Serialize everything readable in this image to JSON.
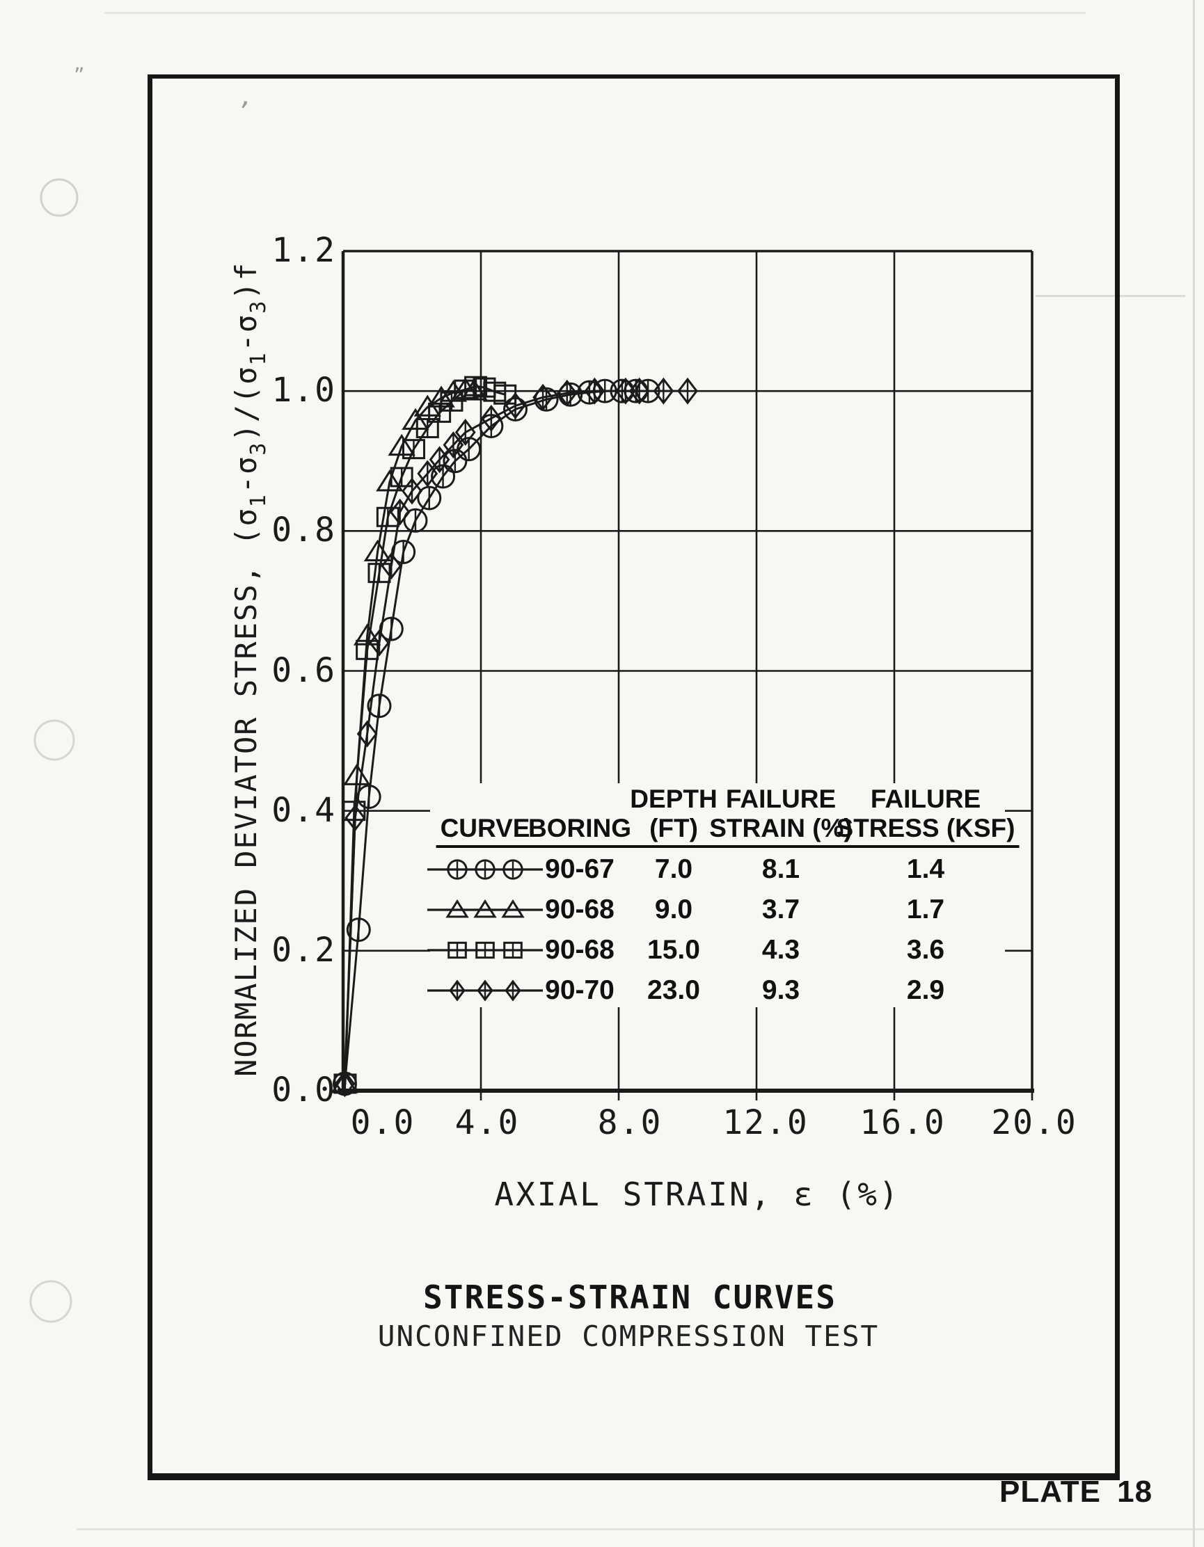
{
  "page": {
    "title": "STRESS-STRAIN CURVES",
    "subtitle": "UNCONFINED COMPRESSION TEST",
    "plate_label": "PLATE 18",
    "paper_color": "#f7f7f4",
    "ink_color": "#1b1b1b"
  },
  "chart_data": {
    "type": "line",
    "title": "STRESS-STRAIN CURVES",
    "subtitle": "UNCONFINED COMPRESSION TEST",
    "xlabel": "AXIAL STRAIN, ε (%)",
    "ylabel": "NORMALIZED DEVIATOR STRESS,  (σ₁-σ₃)/(σ₁-σ₃)f",
    "xlim": [
      0.0,
      20.0
    ],
    "ylim": [
      0.0,
      1.2
    ],
    "x_tick_labels": [
      "0.0",
      "4.0",
      "8.0",
      "12.0",
      "16.0",
      "20.0"
    ],
    "x_tick_values": [
      0,
      4,
      8,
      12,
      16,
      20
    ],
    "y_tick_labels": [
      "0.0",
      "0.2",
      "0.4",
      "0.6",
      "0.8",
      "1.0",
      "1.2"
    ],
    "y_tick_values": [
      0,
      0.2,
      0.4,
      0.6,
      0.8,
      1.0,
      1.2
    ],
    "grid": true,
    "legend_position": "inside-lower-right-table",
    "series": [
      {
        "name": "Boring 90-67 @ 7.0 ft",
        "marker": "circle",
        "failure_strain_pct": 8.1,
        "failure_stress_ksf": 1.4,
        "points": [
          [
            0.05,
            0.01
          ],
          [
            0.45,
            0.23
          ],
          [
            0.75,
            0.42
          ],
          [
            1.05,
            0.55
          ],
          [
            1.4,
            0.66
          ],
          [
            1.75,
            0.77
          ],
          [
            2.1,
            0.815
          ],
          [
            2.5,
            0.847
          ],
          [
            2.9,
            0.878
          ],
          [
            3.25,
            0.9
          ],
          [
            3.65,
            0.917
          ],
          [
            4.3,
            0.95
          ],
          [
            5.0,
            0.974
          ],
          [
            5.9,
            0.988
          ],
          [
            6.6,
            0.995
          ],
          [
            7.15,
            0.998
          ],
          [
            7.6,
            1.0
          ],
          [
            8.1,
            1.0
          ],
          [
            8.5,
            1.0
          ],
          [
            8.85,
            1.0
          ]
        ]
      },
      {
        "name": "Boring 90-68 @ 9.0 ft",
        "marker": "triangle",
        "failure_strain_pct": 3.7,
        "failure_stress_ksf": 1.7,
        "points": [
          [
            0.04,
            0.01
          ],
          [
            0.4,
            0.45
          ],
          [
            0.7,
            0.65
          ],
          [
            1.0,
            0.77
          ],
          [
            1.35,
            0.87
          ],
          [
            1.7,
            0.921
          ],
          [
            2.1,
            0.958
          ],
          [
            2.45,
            0.977
          ],
          [
            2.85,
            0.99
          ],
          [
            3.2,
            0.998
          ],
          [
            3.55,
            1.002
          ],
          [
            3.8,
            1.0
          ]
        ]
      },
      {
        "name": "Boring 90-68 @ 15.0 ft",
        "marker": "square",
        "failure_strain_pct": 4.3,
        "failure_stress_ksf": 3.6,
        "points": [
          [
            0.06,
            0.01
          ],
          [
            0.32,
            0.4
          ],
          [
            0.7,
            0.63
          ],
          [
            1.05,
            0.74
          ],
          [
            1.3,
            0.82
          ],
          [
            1.7,
            0.877
          ],
          [
            2.05,
            0.917
          ],
          [
            2.45,
            0.947
          ],
          [
            2.8,
            0.969
          ],
          [
            3.15,
            0.985
          ],
          [
            3.55,
            1.002
          ],
          [
            3.85,
            1.007
          ],
          [
            4.1,
            1.005
          ],
          [
            4.4,
            0.999
          ],
          [
            4.7,
            0.995
          ]
        ]
      },
      {
        "name": "Boring 90-70 @ 23.0 ft",
        "marker": "diamond",
        "failure_strain_pct": 9.3,
        "failure_stress_ksf": 2.9,
        "points": [
          [
            0.05,
            0.01
          ],
          [
            0.35,
            0.39
          ],
          [
            0.7,
            0.51
          ],
          [
            1.05,
            0.64
          ],
          [
            1.4,
            0.75
          ],
          [
            1.65,
            0.827
          ],
          [
            2.0,
            0.857
          ],
          [
            2.45,
            0.882
          ],
          [
            2.8,
            0.902
          ],
          [
            3.2,
            0.923
          ],
          [
            3.55,
            0.941
          ],
          [
            4.3,
            0.961
          ],
          [
            5.0,
            0.979
          ],
          [
            5.8,
            0.991
          ],
          [
            6.5,
            0.997
          ],
          [
            7.3,
            1.0
          ],
          [
            8.2,
            1.0
          ],
          [
            8.6,
            1.0
          ],
          [
            9.3,
            1.0
          ],
          [
            10.0,
            1.0
          ]
        ]
      }
    ]
  },
  "legend_table": {
    "columns": [
      {
        "id": "curve",
        "line1": "",
        "line2": "CURVE"
      },
      {
        "id": "boring",
        "line1": "",
        "line2": "BORING"
      },
      {
        "id": "depth",
        "line1": "DEPTH",
        "line2": "(FT)"
      },
      {
        "id": "failure_strain",
        "line1": "FAILURE",
        "line2": "STRAIN (%)"
      },
      {
        "id": "failure_stress",
        "line1": "FAILURE",
        "line2": "STRESS (KSF)"
      }
    ],
    "rows": [
      {
        "marker": "circle",
        "boring": "90-67",
        "depth": "7.0",
        "failure_strain": "8.1",
        "failure_stress": "1.4"
      },
      {
        "marker": "triangle",
        "boring": "90-68",
        "depth": "9.0",
        "failure_strain": "3.7",
        "failure_stress": "1.7"
      },
      {
        "marker": "square",
        "boring": "90-68",
        "depth": "15.0",
        "failure_strain": "4.3",
        "failure_stress": "3.6"
      },
      {
        "marker": "diamond",
        "boring": "90-70",
        "depth": "23.0",
        "failure_strain": "9.3",
        "failure_stress": "2.9"
      }
    ]
  }
}
